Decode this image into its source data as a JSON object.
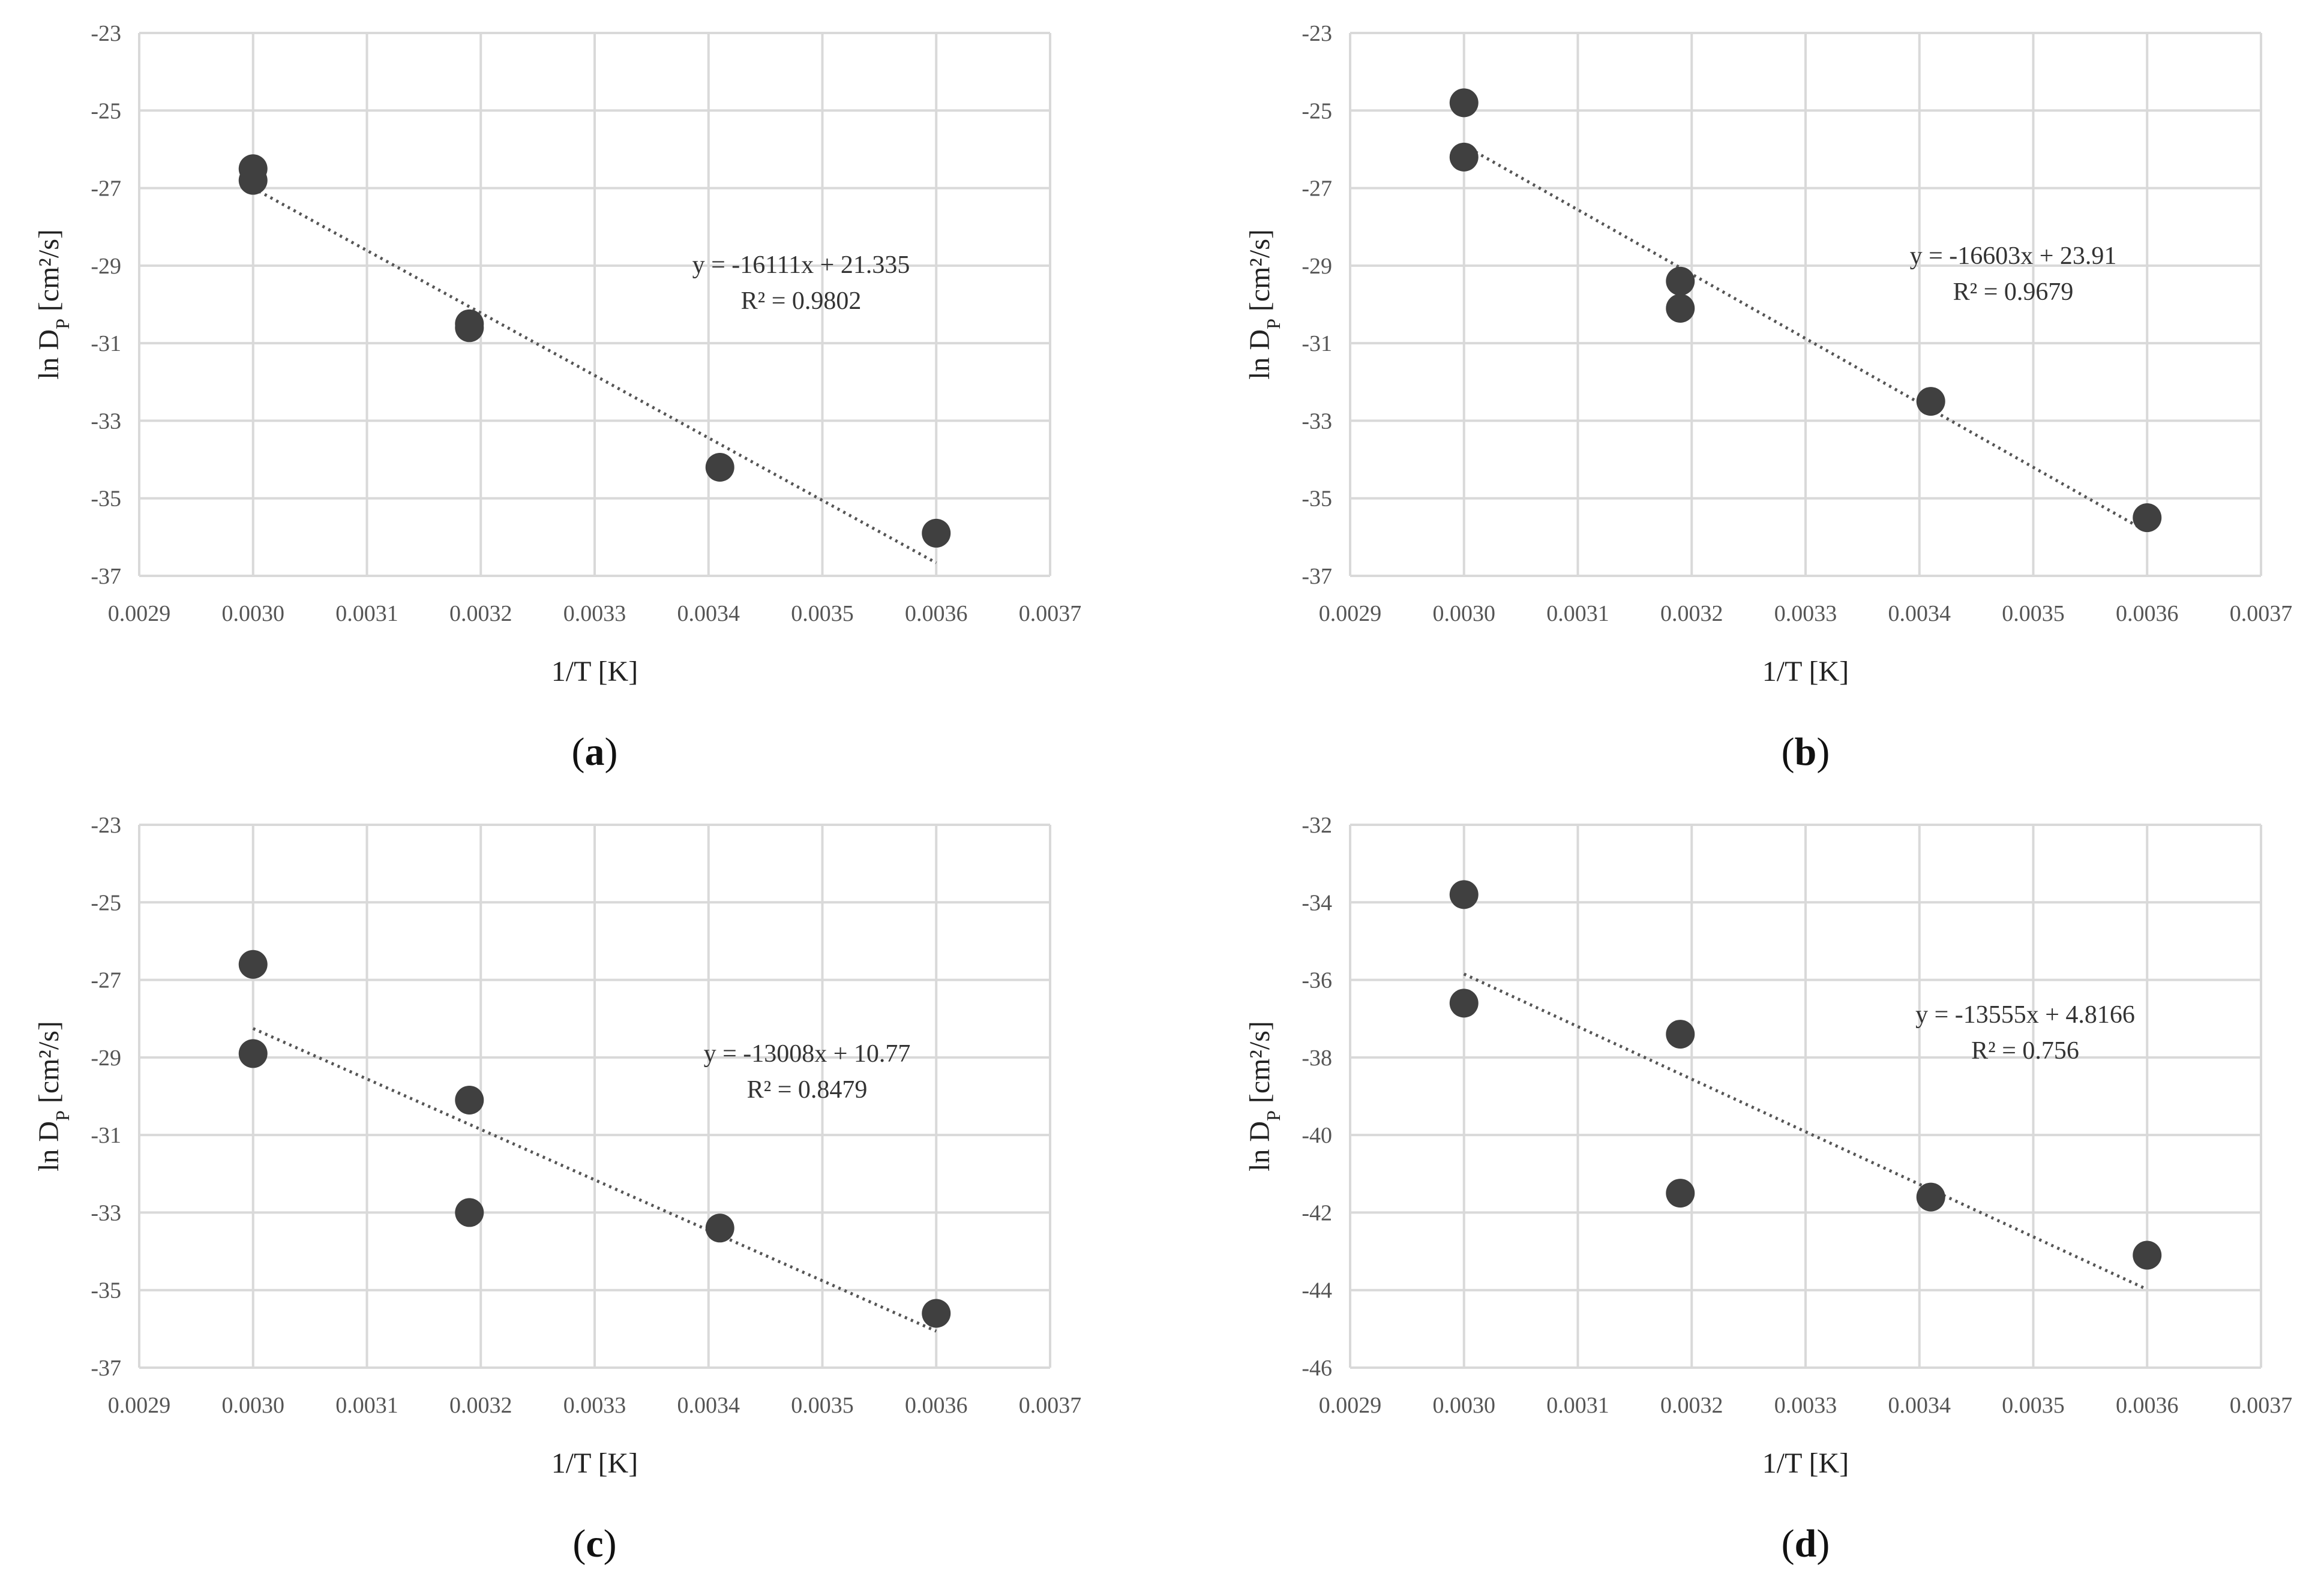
{
  "chart_data": [
    {
      "type": "scatter",
      "panel": "(a)",
      "panel_letter": "a",
      "xlabel": "1/T [K]",
      "ylabel": "ln D_P [cm²/s]",
      "xlim": [
        0.0029,
        0.0037
      ],
      "ylim": [
        -37,
        -23
      ],
      "xticks": [
        "0.0029",
        "0.0030",
        "0.0031",
        "0.0032",
        "0.0033",
        "0.0034",
        "0.0035",
        "0.0036",
        "0.0037"
      ],
      "yticks": [
        "-23",
        "-25",
        "-27",
        "-29",
        "-31",
        "-33",
        "-35",
        "-37"
      ],
      "points": [
        {
          "x": 0.003,
          "y": -26.5
        },
        {
          "x": 0.003,
          "y": -26.8
        },
        {
          "x": 0.00319,
          "y": -30.5
        },
        {
          "x": 0.00319,
          "y": -30.6
        },
        {
          "x": 0.00341,
          "y": -34.2
        },
        {
          "x": 0.0036,
          "y": -35.9
        }
      ],
      "trendline": {
        "slope": -16111,
        "intercept": 21.335,
        "x_start": 0.003,
        "x_end": 0.0036
      },
      "equation": "y = -16111x + 21.335",
      "r2": "R² = 0.9802"
    },
    {
      "type": "scatter",
      "panel": "(b)",
      "panel_letter": "b",
      "xlabel": "1/T [K]",
      "ylabel": "ln D_P [cm²/s]",
      "xlim": [
        0.0029,
        0.0037
      ],
      "ylim": [
        -37,
        -23
      ],
      "xticks": [
        "0.0029",
        "0.0030",
        "0.0031",
        "0.0032",
        "0.0033",
        "0.0034",
        "0.0035",
        "0.0036",
        "0.0037"
      ],
      "yticks": [
        "-23",
        "-25",
        "-27",
        "-29",
        "-31",
        "-33",
        "-35",
        "-37"
      ],
      "points": [
        {
          "x": 0.003,
          "y": -24.8
        },
        {
          "x": 0.003,
          "y": -26.2
        },
        {
          "x": 0.00319,
          "y": -29.4
        },
        {
          "x": 0.00319,
          "y": -30.1
        },
        {
          "x": 0.00341,
          "y": -32.5
        },
        {
          "x": 0.0036,
          "y": -35.5
        }
      ],
      "trendline": {
        "slope": -16603,
        "intercept": 23.91,
        "x_start": 0.003,
        "x_end": 0.0036
      },
      "equation": "y = -16603x + 23.91",
      "r2": "R² = 0.9679"
    },
    {
      "type": "scatter",
      "panel": "(c)",
      "panel_letter": "c",
      "xlabel": "1/T [K]",
      "ylabel": "ln D_P [cm²/s]",
      "xlim": [
        0.0029,
        0.0037
      ],
      "ylim": [
        -37,
        -23
      ],
      "xticks": [
        "0.0029",
        "0.0030",
        "0.0031",
        "0.0032",
        "0.0033",
        "0.0034",
        "0.0035",
        "0.0036",
        "0.0037"
      ],
      "yticks": [
        "-23",
        "-25",
        "-27",
        "-29",
        "-31",
        "-33",
        "-35",
        "-37"
      ],
      "points": [
        {
          "x": 0.003,
          "y": -26.6
        },
        {
          "x": 0.003,
          "y": -28.9
        },
        {
          "x": 0.00319,
          "y": -30.1
        },
        {
          "x": 0.00319,
          "y": -33.0
        },
        {
          "x": 0.00341,
          "y": -33.4
        },
        {
          "x": 0.0036,
          "y": -35.6
        }
      ],
      "trendline": {
        "slope": -13008,
        "intercept": 10.77,
        "x_start": 0.003,
        "x_end": 0.0036
      },
      "equation": "y = -13008x + 10.77",
      "r2": "R² = 0.8479"
    },
    {
      "type": "scatter",
      "panel": "(d)",
      "panel_letter": "d",
      "xlabel": "1/T [K]",
      "ylabel": "ln D_P [cm²/s]",
      "xlim": [
        0.0029,
        0.0037
      ],
      "ylim": [
        -46,
        -32
      ],
      "xticks": [
        "0.0029",
        "0.0030",
        "0.0031",
        "0.0032",
        "0.0033",
        "0.0034",
        "0.0035",
        "0.0036",
        "0.0037"
      ],
      "yticks": [
        "-32",
        "-34",
        "-36",
        "-38",
        "-40",
        "-42",
        "-44",
        "-46"
      ],
      "points": [
        {
          "x": 0.003,
          "y": -33.8
        },
        {
          "x": 0.003,
          "y": -36.6
        },
        {
          "x": 0.00319,
          "y": -37.4
        },
        {
          "x": 0.00319,
          "y": -41.5
        },
        {
          "x": 0.00341,
          "y": -41.6
        },
        {
          "x": 0.0036,
          "y": -43.1
        }
      ],
      "trendline": {
        "slope": -13555,
        "intercept": 4.8166,
        "x_start": 0.003,
        "x_end": 0.0036
      },
      "equation": "y = -13555x + 4.8166",
      "r2": "R² = 0.756"
    }
  ],
  "colors": {
    "marker": "#404040",
    "grid": "#d9d9d9",
    "trendline": "#555555"
  }
}
